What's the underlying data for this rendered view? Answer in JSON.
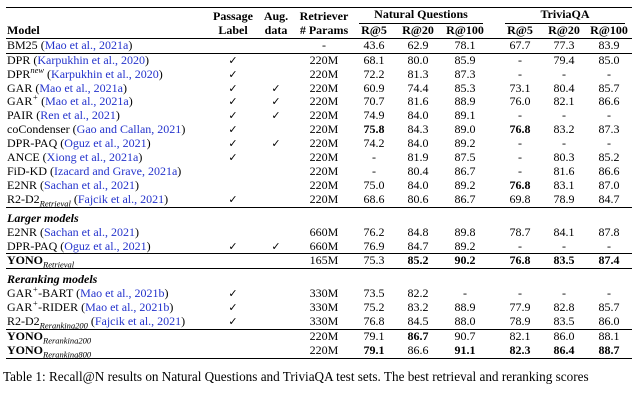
{
  "colors": {
    "citation_blue": "#2433cc",
    "text": "#000000",
    "background": "#ffffff"
  },
  "icons": {
    "checkmark": "✓"
  },
  "table": {
    "caption": "Table 1: Recall@N results on Natural Questions and TriviaQA test sets. The best retrieval and reranking scores",
    "header": {
      "model": "Model",
      "passage_line1": "Passage",
      "passage_line2": "Label",
      "aug_line1": "Aug.",
      "aug_line2": "data",
      "retriever_line1": "Retriever",
      "retriever_line2": "# Params",
      "group_nq": "Natural Questions",
      "group_tqa": "TriviaQA",
      "r5": "R@5",
      "r20": "R@20",
      "r100": "R@100"
    },
    "sections": [
      {
        "rows": [
          {
            "name": "BM25",
            "cite": "Mao et al., 2021a",
            "passage": false,
            "aug": false,
            "params": "-",
            "values": [
              "43.6",
              "62.9",
              "78.1",
              "67.7",
              "77.3",
              "83.9"
            ],
            "bold": []
          }
        ]
      },
      {
        "rows": [
          {
            "name": "DPR",
            "cite": "Karpukhin et al., 2020",
            "passage": true,
            "aug": false,
            "params": "220M",
            "values": [
              "68.1",
              "80.0",
              "85.9",
              "-",
              "79.4",
              "85.0"
            ],
            "bold": []
          },
          {
            "name": "DPR",
            "sup": "new",
            "cite": "Karpukhin et al., 2020",
            "passage": true,
            "aug": false,
            "params": "220M",
            "values": [
              "72.2",
              "81.3",
              "87.3",
              "-",
              "-",
              "-"
            ],
            "bold": []
          },
          {
            "name": "GAR",
            "cite": "Mao et al., 2021a",
            "passage": true,
            "aug": true,
            "params": "220M",
            "values": [
              "60.9",
              "74.4",
              "85.3",
              "73.1",
              "80.4",
              "85.7"
            ],
            "bold": []
          },
          {
            "name": "GAR",
            "sup": "+",
            "cite": "Mao et al., 2021a",
            "passage": true,
            "aug": true,
            "params": "220M",
            "values": [
              "70.7",
              "81.6",
              "88.9",
              "76.0",
              "82.1",
              "86.6"
            ],
            "bold": []
          },
          {
            "name": "PAIR",
            "cite": "Ren et al., 2021",
            "passage": true,
            "aug": true,
            "params": "220M",
            "values": [
              "74.9",
              "84.0",
              "89.1",
              "-",
              "-",
              "-"
            ],
            "bold": []
          },
          {
            "name": "coCondenser",
            "cite": "Gao and Callan, 2021",
            "passage": true,
            "aug": false,
            "params": "220M",
            "values": [
              "75.8",
              "84.3",
              "89.0",
              "76.8",
              "83.2",
              "87.3"
            ],
            "bold": [
              0,
              3
            ]
          },
          {
            "name": "DPR-PAQ",
            "cite": "Oguz et al., 2021",
            "passage": true,
            "aug": true,
            "params": "220M",
            "values": [
              "74.2",
              "84.0",
              "89.2",
              "-",
              "-",
              "-"
            ],
            "bold": []
          },
          {
            "name": "ANCE",
            "cite": "Xiong et al., 2021a",
            "passage": true,
            "aug": false,
            "params": "220M",
            "values": [
              "-",
              "81.9",
              "87.5",
              "-",
              "80.3",
              "85.2"
            ],
            "bold": []
          },
          {
            "name": "FiD-KD",
            "cite": "Izacard and Grave, 2021a",
            "passage": false,
            "aug": false,
            "params": "220M",
            "values": [
              "-",
              "80.4",
              "86.7",
              "-",
              "81.6",
              "86.6"
            ],
            "bold": []
          },
          {
            "name": "E2NR",
            "cite": "Sachan et al., 2021",
            "passage": false,
            "aug": false,
            "params": "220M",
            "values": [
              "75.0",
              "84.0",
              "89.2",
              "76.8",
              "83.1",
              "87.0"
            ],
            "bold": [
              3
            ]
          },
          {
            "name": "R2-D2",
            "sub": "Retrieval",
            "cite": "Fajcik et al., 2021",
            "passage": true,
            "aug": false,
            "params": "220M",
            "values": [
              "68.6",
              "80.6",
              "86.7",
              "69.8",
              "78.9",
              "84.7"
            ],
            "bold": []
          }
        ]
      },
      {
        "label": "Larger models",
        "rows": [
          {
            "name": "E2NR",
            "cite": "Sachan et al., 2021",
            "passage": false,
            "aug": false,
            "params": "660M",
            "values": [
              "76.2",
              "84.8",
              "89.8",
              "78.7",
              "84.1",
              "87.8"
            ],
            "bold": []
          },
          {
            "name": "DPR-PAQ",
            "cite": "Oguz et al., 2021",
            "passage": true,
            "aug": true,
            "params": "660M",
            "values": [
              "76.9",
              "84.7",
              "89.2",
              "-",
              "-",
              "-"
            ],
            "bold": []
          }
        ]
      },
      {
        "rows": [
          {
            "name": "YONO",
            "nameBold": true,
            "sub": "Retrieval",
            "passage": false,
            "aug": false,
            "params": "165M",
            "values": [
              "75.3",
              "85.2",
              "90.2",
              "76.8",
              "83.5",
              "87.4"
            ],
            "bold": [
              1,
              2,
              3,
              4,
              5
            ]
          }
        ]
      },
      {
        "label": "Reranking models",
        "rows": [
          {
            "name": "GAR",
            "sup": "+",
            "suffix": "-BART",
            "cite": "Mao et al., 2021b",
            "passage": true,
            "aug": false,
            "params": "330M",
            "values": [
              "73.5",
              "82.2",
              "-",
              "-",
              "-",
              "-"
            ],
            "bold": []
          },
          {
            "name": "GAR",
            "sup": "+",
            "suffix": "-RIDER",
            "cite": "Mao et al., 2021b",
            "passage": true,
            "aug": false,
            "params": "330M",
            "values": [
              "75.2",
              "83.2",
              "88.9",
              "77.9",
              "82.8",
              "85.7"
            ],
            "bold": []
          },
          {
            "name": "R2-D2",
            "sub": "Reranking200",
            "cite": "Fajcik et al., 2021",
            "passage": true,
            "aug": false,
            "params": "330M",
            "values": [
              "76.8",
              "84.5",
              "88.0",
              "78.9",
              "83.5",
              "86.0"
            ],
            "bold": []
          }
        ]
      },
      {
        "rows": [
          {
            "name": "YONO",
            "nameBold": true,
            "sub": "Reranking200",
            "passage": false,
            "aug": false,
            "params": "220M",
            "values": [
              "79.1",
              "86.7",
              "90.7",
              "82.1",
              "86.0",
              "88.1"
            ],
            "bold": [
              1
            ]
          },
          {
            "name": "YONO",
            "nameBold": true,
            "sub": "Reranking800",
            "passage": false,
            "aug": false,
            "params": "220M",
            "values": [
              "79.1",
              "86.6",
              "91.1",
              "82.3",
              "86.4",
              "88.7"
            ],
            "bold": [
              0,
              2,
              3,
              4,
              5
            ]
          }
        ]
      }
    ]
  }
}
